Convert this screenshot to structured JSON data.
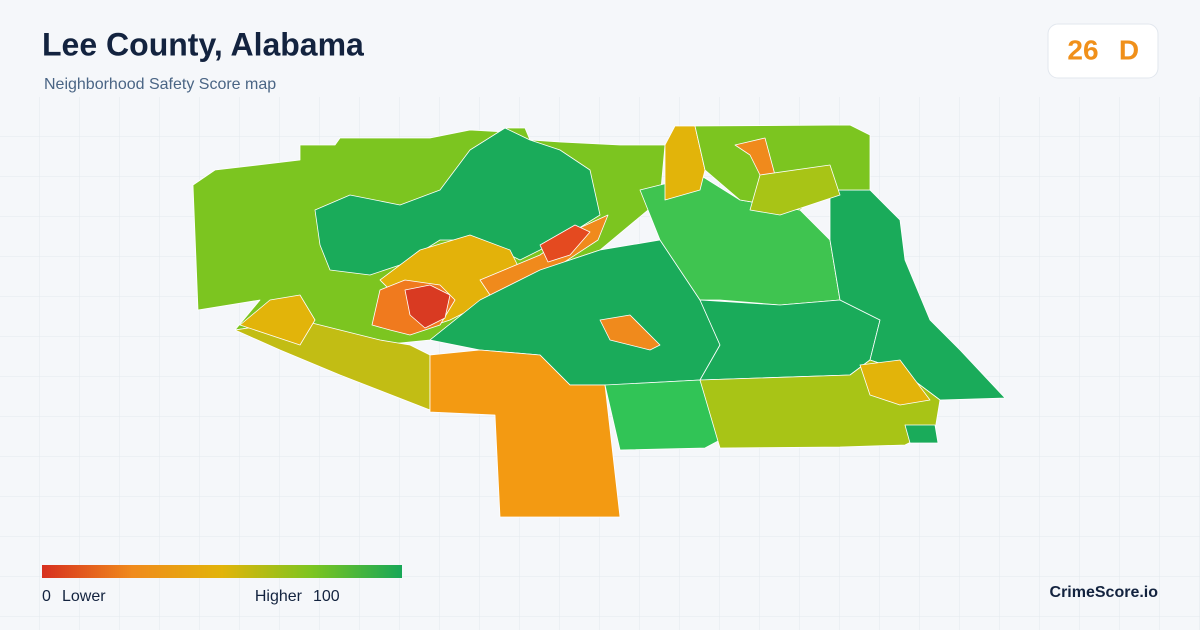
{
  "header": {
    "title": "Lee County, Alabama",
    "subtitle": "Neighborhood Safety Score map"
  },
  "score": {
    "value": 26,
    "grade": "D"
  },
  "legend": {
    "min": 0,
    "min_label": "Lower",
    "max_label": "Higher",
    "max": 100
  },
  "footer": {
    "brand": "CrimeScore.io"
  }
}
